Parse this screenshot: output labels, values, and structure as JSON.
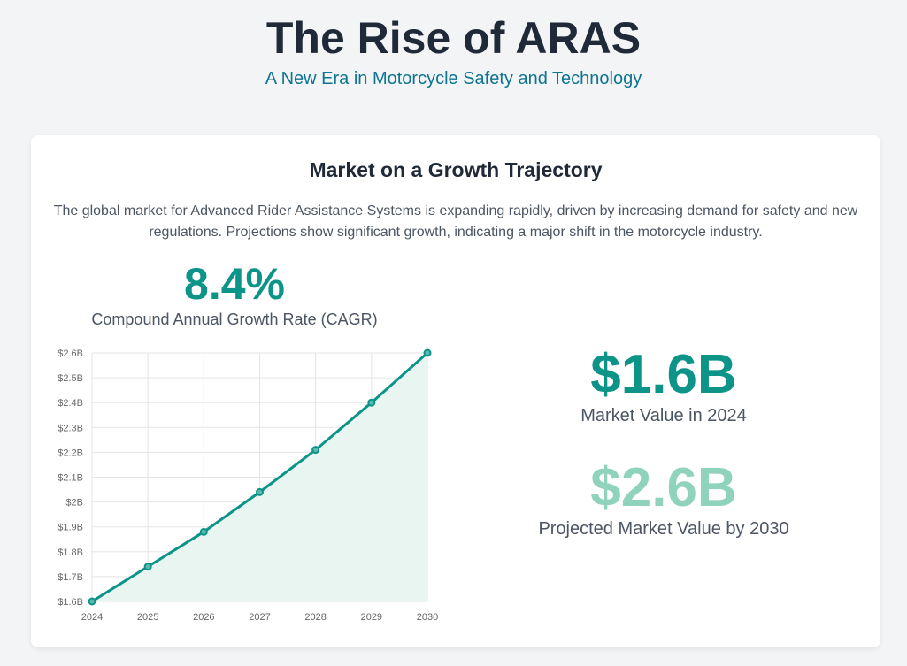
{
  "header": {
    "title": "The Rise of ARAS",
    "subtitle": "A New Era in Motorcycle Safety and Technology"
  },
  "card": {
    "heading": "Market on a Growth Trajectory",
    "description": "The global market for Advanced Rider Assistance Systems is expanding rapidly, driven by increasing demand for safety and new regulations. Projections show significant growth, indicating a major shift in the motorcycle industry.",
    "cagr": {
      "value": "8.4%",
      "label": "Compound Annual Growth Rate (CAGR)"
    },
    "stats": [
      {
        "value": "$1.6B",
        "label": "Market Value in 2024",
        "color": "#0d9488"
      },
      {
        "value": "$2.6B",
        "label": "Projected Market Value by 2030",
        "color": "#8fd3bd"
      }
    ]
  },
  "chart_data": {
    "type": "line",
    "x": [
      "2024",
      "2025",
      "2026",
      "2027",
      "2028",
      "2029",
      "2030"
    ],
    "series": [
      {
        "name": "Market Value ($B)",
        "values": [
          1.6,
          1.74,
          1.88,
          2.04,
          2.21,
          2.4,
          2.6
        ],
        "color": "#0d9488",
        "fill": "#e8f5f0"
      }
    ],
    "yticks": [
      "$1.6B",
      "$1.7B",
      "$1.8B",
      "$1.9B",
      "$2B",
      "$2.1B",
      "$2.2B",
      "$2.3B",
      "$2.4B",
      "$2.5B",
      "$2.6B"
    ],
    "ylim": [
      1.6,
      2.6
    ],
    "grid": true,
    "legend": "none"
  }
}
